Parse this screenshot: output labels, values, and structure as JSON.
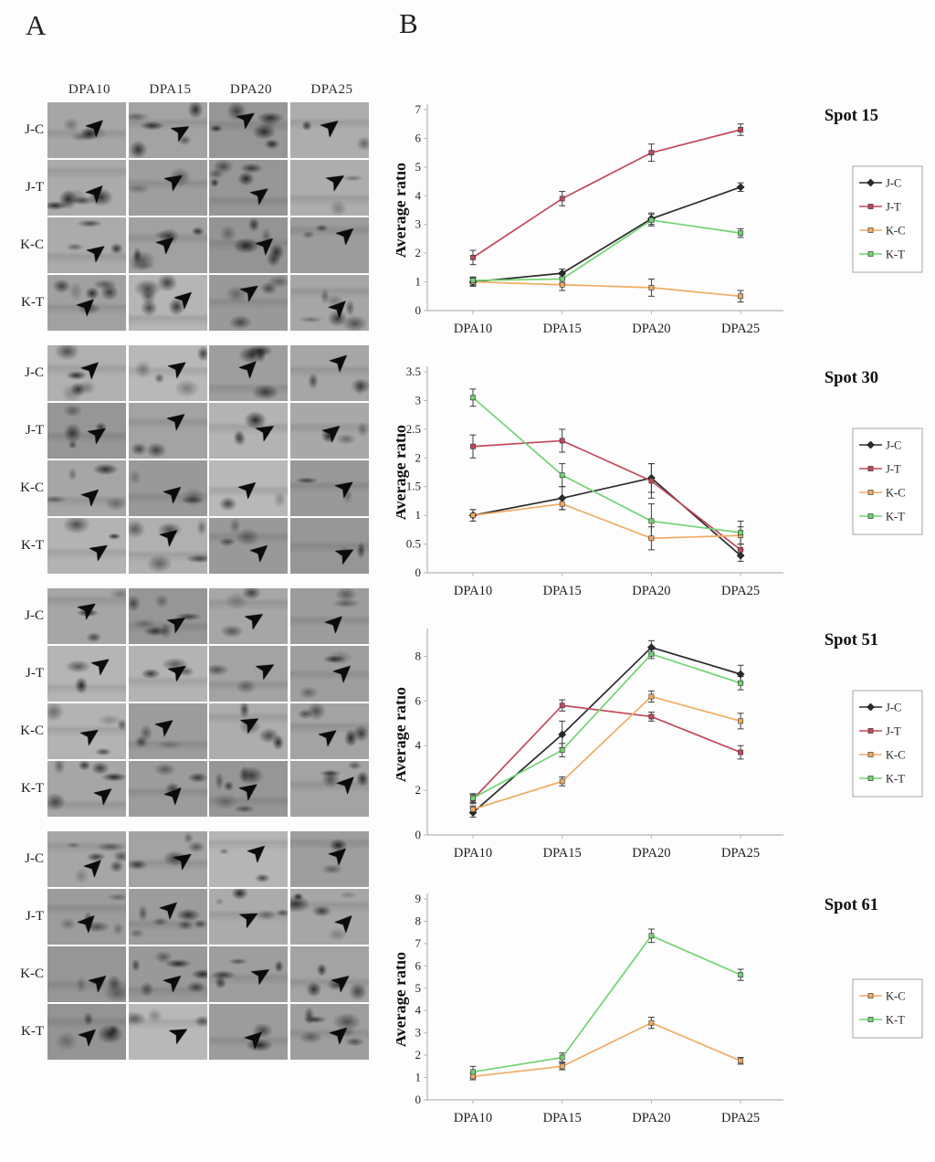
{
  "panel_a": {
    "label": "A",
    "column_labels": [
      "DPA10",
      "DPA15",
      "DPA20",
      "DPA25"
    ],
    "groups": [
      {
        "rows": [
          "J-C",
          "J-T",
          "K-C",
          "K-T"
        ]
      },
      {
        "rows": [
          "J-C",
          "J-T",
          "K-C",
          "K-T"
        ]
      },
      {
        "rows": [
          "J-C",
          "J-T",
          "K-C",
          "K-T"
        ]
      },
      {
        "rows": [
          "J-C",
          "J-T",
          "K-C",
          "K-T"
        ]
      }
    ]
  },
  "panel_b": {
    "label": "B"
  },
  "icons": {
    "spot_arrow": "➤"
  },
  "chart_data": [
    {
      "type": "line",
      "title": "Spot 15",
      "xlabel": "",
      "ylabel": "Average ratio",
      "categories": [
        "DPA10",
        "DPA15",
        "DPA20",
        "DPA25"
      ],
      "ylim": [
        0,
        7
      ],
      "yticks": [
        0,
        1,
        2,
        3,
        4,
        5,
        6,
        7
      ],
      "grid": false,
      "legend_position": "right",
      "series": [
        {
          "name": "J-C",
          "color": "#2b2b2b",
          "marker": "diamond",
          "values": [
            1.0,
            1.3,
            3.2,
            4.3
          ],
          "errors": [
            0.15,
            0.15,
            0.2,
            0.15
          ]
        },
        {
          "name": "J-T",
          "color": "#c1495a",
          "marker": "square",
          "values": [
            1.85,
            3.9,
            5.5,
            6.3
          ],
          "errors": [
            0.25,
            0.25,
            0.3,
            0.2
          ]
        },
        {
          "name": "K-C",
          "color": "#f0ab64",
          "marker": "square",
          "values": [
            1.0,
            0.9,
            0.8,
            0.5
          ],
          "errors": [
            0.12,
            0.2,
            0.3,
            0.2
          ]
        },
        {
          "name": "K-T",
          "color": "#72d472",
          "marker": "square",
          "values": [
            1.05,
            1.1,
            3.15,
            2.7
          ],
          "errors": [
            0.12,
            0.15,
            0.2,
            0.15
          ]
        }
      ]
    },
    {
      "type": "line",
      "title": "Spot 30",
      "xlabel": "",
      "ylabel": "Average ratio",
      "categories": [
        "DPA10",
        "DPA15",
        "DPA20",
        "DPA25"
      ],
      "ylim": [
        0,
        3.5
      ],
      "yticks": [
        0,
        0.5,
        1,
        1.5,
        2,
        2.5,
        3,
        3.5
      ],
      "grid": false,
      "legend_position": "right",
      "series": [
        {
          "name": "J-C",
          "color": "#2b2b2b",
          "marker": "diamond",
          "values": [
            1.0,
            1.3,
            1.65,
            0.3
          ],
          "errors": [
            0.1,
            0.2,
            0.25,
            0.1
          ]
        },
        {
          "name": "J-T",
          "color": "#c1495a",
          "marker": "square",
          "values": [
            2.2,
            2.3,
            1.6,
            0.4
          ],
          "errors": [
            0.2,
            0.2,
            0.3,
            0.1
          ]
        },
        {
          "name": "K-C",
          "color": "#f0ab64",
          "marker": "square",
          "values": [
            1.0,
            1.2,
            0.6,
            0.65
          ],
          "errors": [
            0.1,
            0.1,
            0.2,
            0.15
          ]
        },
        {
          "name": "K-T",
          "color": "#72d472",
          "marker": "square",
          "values": [
            3.05,
            1.7,
            0.9,
            0.7
          ],
          "errors": [
            0.15,
            0.2,
            0.3,
            0.2
          ]
        }
      ]
    },
    {
      "type": "line",
      "title": "Spot 51",
      "xlabel": "",
      "ylabel": "Average ratio",
      "categories": [
        "DPA10",
        "DPA15",
        "DPA20",
        "DPA25"
      ],
      "ylim": [
        0,
        9
      ],
      "yticks": [
        0,
        2,
        4,
        6,
        8
      ],
      "grid": false,
      "legend_position": "right",
      "series": [
        {
          "name": "J-C",
          "color": "#2b2b2b",
          "marker": "diamond",
          "values": [
            1.0,
            4.5,
            8.4,
            7.2
          ],
          "errors": [
            0.2,
            0.6,
            0.3,
            0.4
          ]
        },
        {
          "name": "J-T",
          "color": "#c1495a",
          "marker": "square",
          "values": [
            1.6,
            5.8,
            5.3,
            3.7
          ],
          "errors": [
            0.2,
            0.25,
            0.2,
            0.3
          ]
        },
        {
          "name": "K-C",
          "color": "#f0ab64",
          "marker": "square",
          "values": [
            1.15,
            2.4,
            6.2,
            5.1
          ],
          "errors": [
            0.15,
            0.2,
            0.25,
            0.35
          ]
        },
        {
          "name": "K-T",
          "color": "#72d472",
          "marker": "square",
          "values": [
            1.65,
            3.8,
            8.1,
            6.8
          ],
          "errors": [
            0.2,
            0.3,
            0.2,
            0.3
          ]
        }
      ]
    },
    {
      "type": "line",
      "title": "Spot 61",
      "xlabel": "",
      "ylabel": "Average ratio",
      "categories": [
        "DPA10",
        "DPA15",
        "DPA20",
        "DPA25"
      ],
      "ylim": [
        0,
        9
      ],
      "yticks": [
        0,
        1,
        2,
        3,
        4,
        5,
        6,
        7,
        8,
        9
      ],
      "grid": false,
      "legend_position": "right",
      "series": [
        {
          "name": "K-C",
          "color": "#f0ab64",
          "marker": "square",
          "values": [
            1.05,
            1.5,
            3.45,
            1.75
          ],
          "errors": [
            0.15,
            0.15,
            0.25,
            0.15
          ]
        },
        {
          "name": "K-T",
          "color": "#72d472",
          "marker": "square",
          "values": [
            1.25,
            1.9,
            7.35,
            5.6
          ],
          "errors": [
            0.25,
            0.2,
            0.3,
            0.25
          ]
        }
      ]
    }
  ]
}
